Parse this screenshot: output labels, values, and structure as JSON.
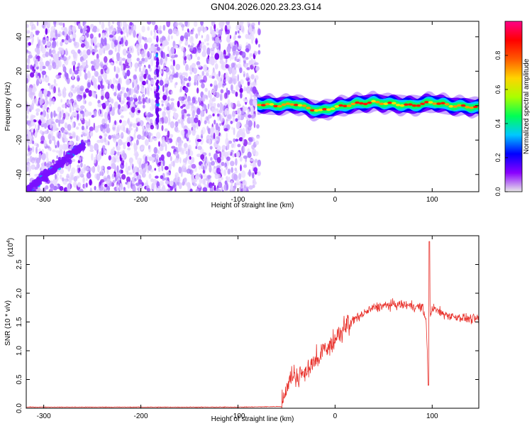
{
  "title": "GN04.2026.020.23.23.G14",
  "chart_data": [
    {
      "type": "heatmap",
      "xlabel": "Height of straight line (km)",
      "ylabel": "Frequency (Hz)",
      "xlim": [
        -318,
        148
      ],
      "ylim": [
        -50,
        49
      ],
      "x_ticks": [
        -300,
        -200,
        -100,
        0,
        100
      ],
      "y_ticks": [
        -40,
        -20,
        0,
        20,
        40
      ],
      "noise_region_x": [
        -318,
        -78
      ],
      "diagonal_streak": {
        "x": [
          -318,
          -258
        ],
        "y": [
          -50,
          -22
        ]
      },
      "vertical_streak": {
        "x": -183,
        "y": [
          -10,
          30
        ]
      },
      "ridge": {
        "x": [
          -80,
          -60,
          -40,
          -25,
          -15,
          0,
          20,
          40,
          60,
          80,
          100,
          120,
          148
        ],
        "y": [
          1,
          0,
          1,
          -2,
          -3,
          -1,
          1,
          2,
          1,
          0,
          2,
          0,
          -1
        ]
      },
      "colorbar": {
        "label": "Normalized spectral amplitude",
        "ticks": [
          0.0,
          0.2,
          0.4,
          0.6,
          0.8
        ],
        "range": [
          0,
          1
        ],
        "colors": [
          "#e8e8e8",
          "#8a00ff",
          "#0000ff",
          "#00c8ff",
          "#00ff55",
          "#aaff00",
          "#ffd400",
          "#ff5a00",
          "#ff0000",
          "#ff0088"
        ]
      },
      "grid": false
    },
    {
      "type": "line",
      "xlabel": "Height of straight line (km)",
      "ylabel": "SNR (10 * v/v)",
      "y_multiplier_label": "(x10",
      "y_multiplier_exp": "4",
      "xlim": [
        -318,
        148
      ],
      "ylim": [
        0,
        3.0
      ],
      "x_ticks": [
        -300,
        -200,
        -100,
        0,
        100
      ],
      "y_ticks": [
        0.0,
        0.5,
        1.0,
        1.5,
        2.0,
        2.5
      ],
      "series": [
        {
          "color": "#e8302a",
          "x": [
            -318,
            -100,
            -55,
            -52,
            -48,
            -45,
            -40,
            -30,
            -20,
            -10,
            0,
            10,
            20,
            30,
            40,
            50,
            60,
            70,
            80,
            90,
            94,
            96,
            97,
            98,
            100,
            110,
            120,
            130,
            140,
            148
          ],
          "y": [
            0.02,
            0.02,
            0.03,
            0.15,
            0.4,
            0.55,
            0.5,
            0.6,
            0.8,
            1.0,
            1.15,
            1.35,
            1.55,
            1.65,
            1.75,
            1.78,
            1.8,
            1.8,
            1.78,
            1.75,
            1.5,
            0.4,
            2.9,
            1.6,
            1.75,
            1.65,
            1.6,
            1.58,
            1.55,
            1.55
          ]
        }
      ],
      "grid": false
    }
  ]
}
